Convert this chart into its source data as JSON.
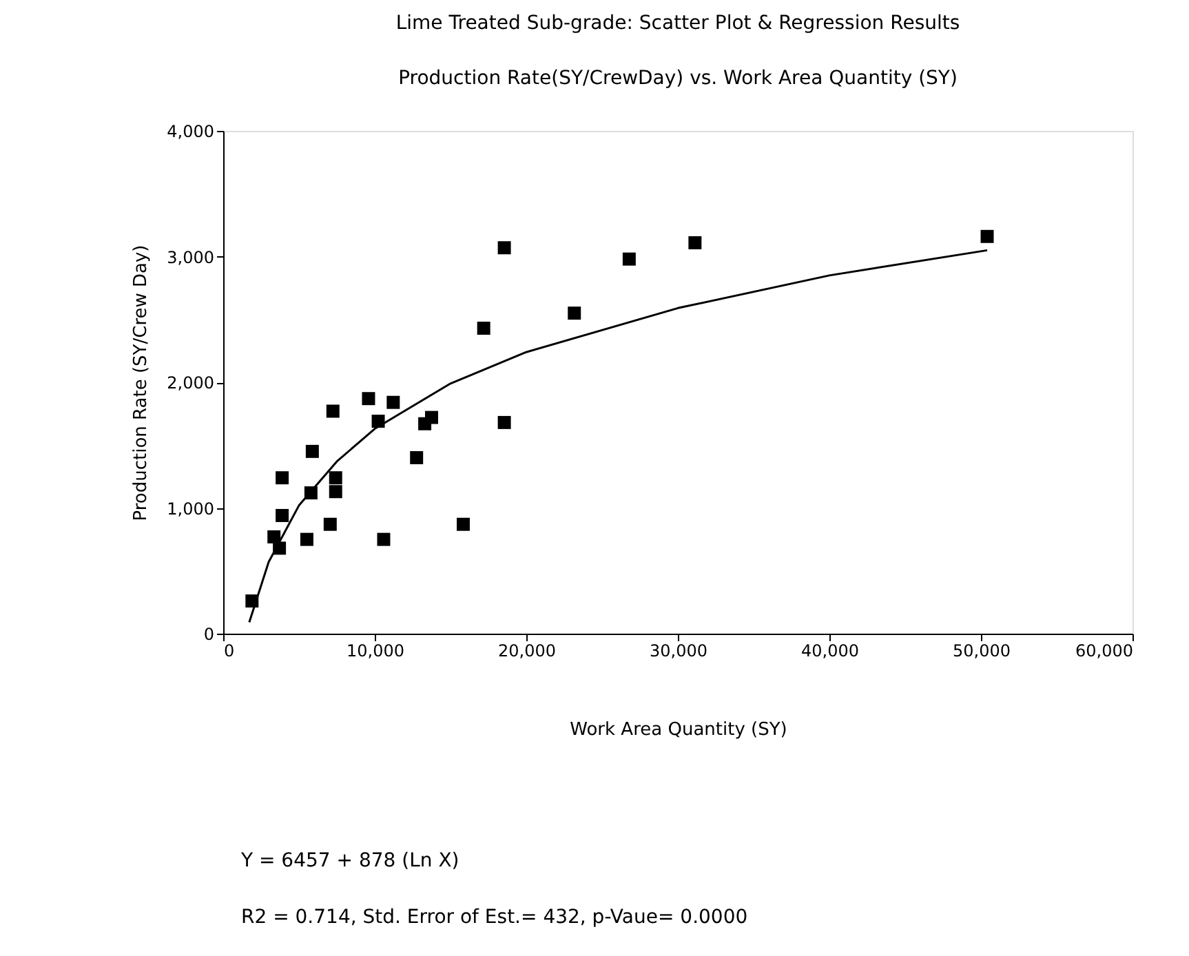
{
  "chart_data": {
    "type": "scatter",
    "title": [
      "Lime Treated Sub-grade: Scatter Plot & Regression Results",
      "Production Rate(SY/CrewDay) vs. Work Area Quantity (SY)"
    ],
    "xlabel": "Work Area Quantity (SY)",
    "ylabel": "Production Rate (SY/Crew Day)",
    "xlim": [
      0,
      60000
    ],
    "xticks": [
      0,
      {
        "value": 10000,
        "label": "10,000"
      },
      {
        "value": 20000,
        "label": "20,000"
      },
      {
        "value": 30000,
        "label": "30,000"
      },
      {
        "value": 40000,
        "label": "40,000"
      },
      {
        "value": 50000,
        "label": "50,000"
      },
      {
        "value": 60000,
        "label": "60,000"
      }
    ],
    "ylim": [
      0,
      4000
    ],
    "yticks": [
      0,
      {
        "value": 1000,
        "label": "1,000"
      },
      {
        "value": 2000,
        "label": "2,000"
      },
      {
        "value": 3000,
        "label": "3,000"
      },
      {
        "value": 4000,
        "label": "4,000"
      }
    ],
    "grid": false,
    "legend": false,
    "marker": "square",
    "series": [
      {
        "color": "#000000",
        "x": [
          1900,
          3350,
          3710,
          3890,
          3890,
          5790,
          5520,
          5880,
          7060,
          7420,
          7420,
          7240,
          9590,
          11220,
          10230,
          10590,
          12760,
          13300,
          13750,
          15840,
          18550,
          17190,
          26790,
          31130,
          23170,
          50410,
          18550
        ],
        "values": [
          260,
          770,
          680,
          940,
          1240,
          1120,
          750,
          1450,
          870,
          1240,
          1130,
          1770,
          1870,
          1840,
          1690,
          750,
          1400,
          1670,
          1720,
          870,
          3070,
          2430,
          2980,
          3110,
          2550,
          3160,
          1680
        ]
      },
      {
        "type": "line",
        "color": "#000000",
        "marker": "none",
        "line_style": "solid",
        "x": [
          1720,
          3000,
          5000,
          7500,
          10000,
          15000,
          20000,
          30000,
          40000,
          50410
        ],
        "values": [
          90,
          570,
          1020,
          1370,
          1630,
          1990,
          2240,
          2590,
          2850,
          3050
        ]
      }
    ],
    "annotations": [
      "Y = 6457 + 878 (Ln X)",
      "R2 = 0.714,  Std. Error of Est.= 432, p-Vaue= 0.0000"
    ]
  }
}
